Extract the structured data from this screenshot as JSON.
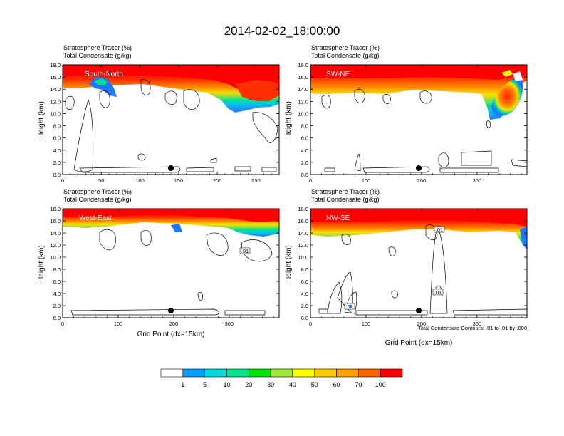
{
  "title": "2014-02-02_18:00:00",
  "colors": {
    "levels": [
      "#ffffff",
      "#1e78ff",
      "#00a0ff",
      "#00dcdc",
      "#00e68c",
      "#00e600",
      "#a0e632",
      "#ffff00",
      "#ffc800",
      "#ffa000",
      "#ff6400",
      "#ff0000"
    ]
  },
  "colorbar": {
    "labels": [
      "1",
      "5",
      "10",
      "20",
      "30",
      "40",
      "50",
      "60",
      "70",
      "100"
    ]
  },
  "footnote": "Total Condensate Contours: .01 to .01 by .000",
  "panels": [
    {
      "id": "south-north",
      "header_line1": "Stratosphere Tracer   (%)",
      "header_line2": "Total Condensate   (g/kg)",
      "region_label": "South-North",
      "ylabel": "Height (km)",
      "xlabel": "",
      "xticks": [
        "0",
        "50",
        "100",
        "150",
        "200",
        "250"
      ],
      "yticks": [
        "0.0",
        "2.0",
        "4.0",
        "6.0",
        "8.0",
        "10.0",
        "12.0",
        "14.0",
        "16.0",
        "18.0"
      ],
      "contour_labels": []
    },
    {
      "id": "sw-ne",
      "header_line1": "Stratosphere Tracer   (%)",
      "header_line2": "Total Condensate   (g/kg)",
      "region_label": "SW-NE",
      "ylabel": "Height (km)",
      "xlabel": "",
      "xticks": [
        "0",
        "100",
        "200",
        "300"
      ],
      "yticks": [
        "0.0",
        "2.0",
        "4.0",
        "6.0",
        "8.0",
        "10.0",
        "12.0",
        "14.0",
        "16.0",
        "18.0"
      ],
      "contour_labels": []
    },
    {
      "id": "west-east",
      "header_line1": "Stratosphere Tracer   (%)",
      "header_line2": "Total Condensate   (g/kg)",
      "region_label": "West-East",
      "ylabel": "Height (km)",
      "xlabel": "Grid Point (dx=15km)",
      "xticks": [
        "0",
        "100",
        "200",
        "300"
      ],
      "yticks": [
        "0.0",
        "2.0",
        "4.0",
        "6.0",
        "8.0",
        "10.0",
        "12.0",
        "14.0",
        "16.0",
        "18.0"
      ],
      "contour_labels": [
        ".01"
      ]
    },
    {
      "id": "nw-se",
      "header_line1": "Stratosphere Tracer   (%)",
      "header_line2": "Total Condensate   (g/kg)",
      "region_label": "NW-SE",
      "ylabel": "Height (km)",
      "xlabel": "Grid Point (dx=15km)",
      "xticks": [
        "0",
        "100",
        "200",
        "300"
      ],
      "yticks": [
        "0.0",
        "2.0",
        "4.0",
        "6.0",
        "8.0",
        "10.0",
        "12.0",
        "14.0",
        "16.0",
        "18.0"
      ],
      "contour_labels": [
        ".01",
        ".01",
        ".01"
      ]
    }
  ],
  "chart_data": {
    "type": "heatmap",
    "title": "2014-02-02_18:00:00",
    "variables": [
      "Stratosphere Tracer (%)",
      "Total Condensate (g/kg)"
    ],
    "xlabel": "Grid Point (dx=15km)",
    "ylabel": "Height (km)",
    "ylim": [
      0,
      18
    ],
    "levels": [
      1,
      5,
      10,
      20,
      30,
      40,
      50,
      60,
      70,
      100
    ],
    "contour_interval": ".01 to .01 by .000",
    "panels": [
      {
        "name": "South-North",
        "xlim": [
          0,
          280
        ],
        "marker_x": 143,
        "marker_height_km": 1.0,
        "tracer_base_km": [
          [
            0,
            14.6
          ],
          [
            30,
            14.0
          ],
          [
            60,
            14.2
          ],
          [
            100,
            15.3
          ],
          [
            150,
            15.5
          ],
          [
            200,
            14.8
          ],
          [
            220,
            12.0
          ],
          [
            250,
            11.8
          ],
          [
            280,
            12.3
          ]
        ]
      },
      {
        "name": "SW-NE",
        "xlim": [
          0,
          390
        ],
        "marker_x": 200,
        "marker_height_km": 1.0,
        "tracer_base_km": [
          [
            0,
            14.5
          ],
          [
            100,
            14.0
          ],
          [
            200,
            14.4
          ],
          [
            300,
            14.0
          ],
          [
            330,
            10.0
          ],
          [
            360,
            11.8
          ],
          [
            390,
            14.5
          ]
        ]
      },
      {
        "name": "West-East",
        "xlim": [
          0,
          390
        ],
        "marker_x": 200,
        "marker_height_km": 1.0,
        "tracer_base_km": [
          [
            0,
            15.3
          ],
          [
            100,
            14.8
          ],
          [
            200,
            15.6
          ],
          [
            300,
            13.8
          ],
          [
            340,
            14.0
          ],
          [
            390,
            14.8
          ]
        ]
      },
      {
        "name": "NW-SE",
        "xlim": [
          0,
          390
        ],
        "marker_x": 200,
        "marker_height_km": 1.0,
        "tracer_base_km": [
          [
            0,
            14.5
          ],
          [
            100,
            13.8
          ],
          [
            200,
            14.6
          ],
          [
            300,
            14.8
          ],
          [
            380,
            12.3
          ],
          [
            390,
            11.5
          ]
        ]
      }
    ]
  }
}
